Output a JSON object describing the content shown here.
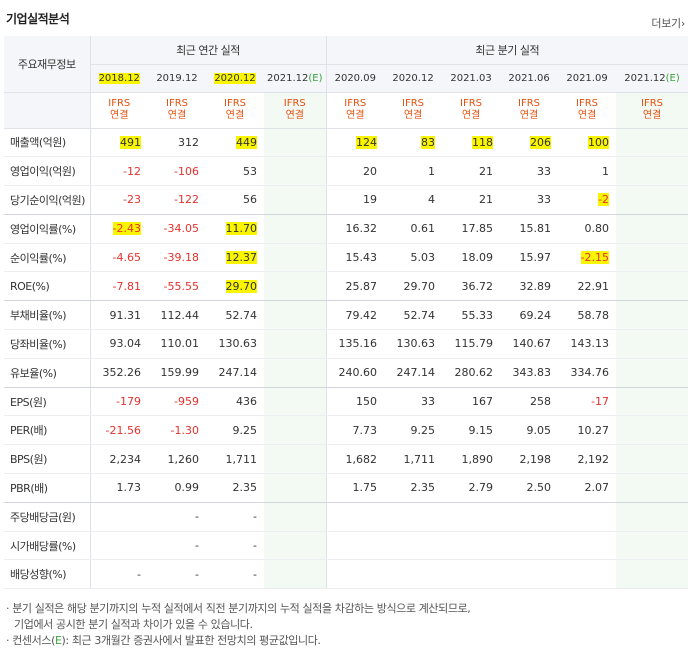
{
  "title": "기업실적분석",
  "more_label": "더보기",
  "more_arrow": "›",
  "headers": {
    "row_label": "주요재무정보",
    "annual_group": "최근 연간 실적",
    "quarter_group": "최근 분기 실적",
    "annual_periods": [
      "2018.12",
      "2019.12",
      "2020.12",
      "2021.12"
    ],
    "quarter_periods": [
      "2020.09",
      "2020.12",
      "2021.03",
      "2021.06",
      "2021.09",
      "2021.12"
    ],
    "estimate_tag": "(E)",
    "ifrs_line1": "IFRS",
    "ifrs_line2": "연결"
  },
  "rows": [
    {
      "label": "매출액(억원)",
      "values": [
        "491",
        "312",
        "449",
        "",
        "124",
        "83",
        "118",
        "206",
        "100",
        ""
      ]
    },
    {
      "label": "영업이익(억원)",
      "values": [
        "-12",
        "-106",
        "53",
        "",
        "20",
        "1",
        "21",
        "33",
        "1",
        ""
      ]
    },
    {
      "label": "당기순이익(억원)",
      "values": [
        "-23",
        "-122",
        "56",
        "",
        "19",
        "4",
        "21",
        "33",
        "-2",
        ""
      ]
    },
    {
      "label": "영업이익률(%)",
      "values": [
        "-2.43",
        "-34.05",
        "11.70",
        "",
        "16.32",
        "0.61",
        "17.85",
        "15.81",
        "0.80",
        ""
      ]
    },
    {
      "label": "순이익률(%)",
      "values": [
        "-4.65",
        "-39.18",
        "12.37",
        "",
        "15.43",
        "5.03",
        "18.09",
        "15.97",
        "-2.15",
        ""
      ]
    },
    {
      "label": "ROE(%)",
      "values": [
        "-7.81",
        "-55.55",
        "29.70",
        "",
        "25.87",
        "29.70",
        "36.72",
        "32.89",
        "22.91",
        ""
      ]
    },
    {
      "label": "부채비율(%)",
      "values": [
        "91.31",
        "112.44",
        "52.74",
        "",
        "79.42",
        "52.74",
        "55.33",
        "69.24",
        "58.78",
        ""
      ]
    },
    {
      "label": "당좌비율(%)",
      "values": [
        "93.04",
        "110.01",
        "130.63",
        "",
        "135.16",
        "130.63",
        "115.79",
        "140.67",
        "143.13",
        ""
      ]
    },
    {
      "label": "유보율(%)",
      "values": [
        "352.26",
        "159.99",
        "247.14",
        "",
        "240.60",
        "247.14",
        "280.62",
        "343.83",
        "334.76",
        ""
      ]
    },
    {
      "label": "EPS(원)",
      "values": [
        "-179",
        "-959",
        "436",
        "",
        "150",
        "33",
        "167",
        "258",
        "-17",
        ""
      ]
    },
    {
      "label": "PER(배)",
      "values": [
        "-21.56",
        "-1.30",
        "9.25",
        "",
        "7.73",
        "9.25",
        "9.15",
        "9.05",
        "10.27",
        ""
      ]
    },
    {
      "label": "BPS(원)",
      "values": [
        "2,234",
        "1,260",
        "1,711",
        "",
        "1,682",
        "1,711",
        "1,890",
        "2,198",
        "2,192",
        ""
      ]
    },
    {
      "label": "PBR(배)",
      "values": [
        "1.73",
        "0.99",
        "2.35",
        "",
        "1.75",
        "2.35",
        "2.79",
        "2.50",
        "2.07",
        ""
      ]
    },
    {
      "label": "주당배당금(원)",
      "values": [
        "",
        "-",
        "-",
        "",
        "",
        "",
        "",
        "",
        "",
        ""
      ]
    },
    {
      "label": "시가배당률(%)",
      "values": [
        "",
        "-",
        "-",
        "",
        "",
        "",
        "",
        "",
        "",
        ""
      ]
    },
    {
      "label": "배당성향(%)",
      "values": [
        "-",
        "-",
        "-",
        "",
        "",
        "",
        "",
        "",
        "",
        ""
      ]
    }
  ],
  "notes": [
    "· 분기 실적은 해당 분기까지의 누적 실적에서 직전 분기까지의 누적 실적을 차감하는 방식으로 계산되므로,",
    "기업에서 공시한 분기 실적과 차이가 있을 수 있습니다.",
    "· 컨센서스(",
    "E",
    "): 최근 3개월간 증권사에서 발표한 전망치의 평균값입니다."
  ],
  "colors": {
    "negative": "#e5322d",
    "estimate": "#3aa33a",
    "ifrs": "#e4500c",
    "highlight": "#f9f400",
    "header_bg": "#f4f6f9"
  }
}
